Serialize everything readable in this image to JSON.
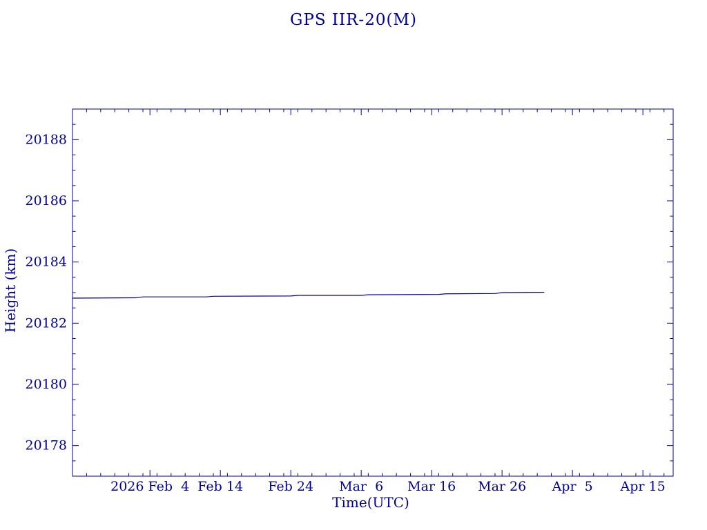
{
  "page": {
    "background": "#ffffff",
    "accent_color": "#000099"
  },
  "chart_data": {
    "type": "line",
    "title": "GPS IIR-20(M)",
    "xlabel": "Time(UTC)",
    "ylabel": "Height (km)",
    "line_color": "#000099",
    "axis_color": "#000099",
    "grid": false,
    "legend": false,
    "xlim_days": [
      0,
      85.3
    ],
    "ylim": [
      20177,
      20189
    ],
    "x_ticks": [
      {
        "day": 11,
        "label": "2026 Feb  4"
      },
      {
        "day": 21,
        "label": "Feb 14"
      },
      {
        "day": 31,
        "label": "Feb 24"
      },
      {
        "day": 41,
        "label": "Mar  6"
      },
      {
        "day": 51,
        "label": "Mar 16"
      },
      {
        "day": 61,
        "label": "Mar 26"
      },
      {
        "day": 71,
        "label": "Apr  5"
      },
      {
        "day": 81,
        "label": "Apr 15"
      }
    ],
    "x_minor_tick_step_days": 2,
    "y_ticks": [
      20178,
      20180,
      20182,
      20184,
      20186,
      20188
    ],
    "y_minor_tick_step": 0.5,
    "series": [
      {
        "name": "Height",
        "x_days": [
          0,
          9,
          10,
          19,
          20,
          31,
          32,
          41,
          42,
          52,
          53,
          60,
          61,
          67
        ],
        "y_km": [
          20182.82,
          20182.83,
          20182.86,
          20182.86,
          20182.88,
          20182.89,
          20182.91,
          20182.91,
          20182.93,
          20182.94,
          20182.96,
          20182.97,
          20183.0,
          20183.01
        ]
      }
    ]
  }
}
